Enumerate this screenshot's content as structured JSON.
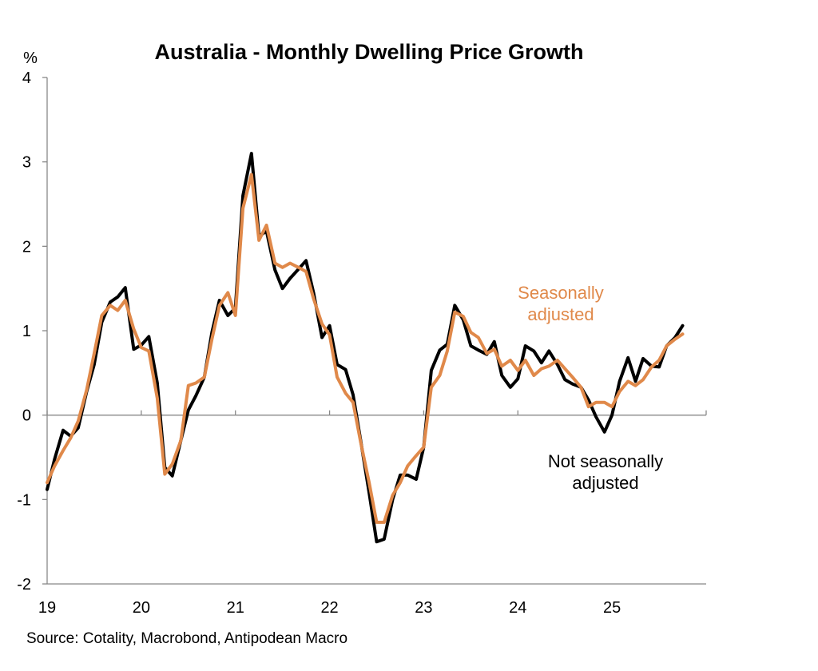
{
  "chart_data": {
    "type": "line",
    "title": "Australia - Monthly Dwelling Price Growth",
    "ylabel": "%",
    "xlabel": "",
    "ylim": [
      -2,
      4
    ],
    "yticks": [
      -2,
      -1,
      0,
      1,
      2,
      3,
      4
    ],
    "xlim": [
      2019.0,
      2026.0
    ],
    "xticks": [
      {
        "label": "19",
        "x": 2019
      },
      {
        "label": "20",
        "x": 2020
      },
      {
        "label": "21",
        "x": 2021
      },
      {
        "label": "22",
        "x": 2022
      },
      {
        "label": "23",
        "x": 2023
      },
      {
        "label": "24",
        "x": 2024
      },
      {
        "label": "25",
        "x": 2025
      }
    ],
    "zero_line": true,
    "grid": false,
    "series": [
      {
        "name": "Not seasonally adjusted",
        "color": "#000000",
        "points": [
          [
            2019.0,
            -0.88
          ],
          [
            2019.08,
            -0.52
          ],
          [
            2019.17,
            -0.18
          ],
          [
            2019.25,
            -0.25
          ],
          [
            2019.33,
            -0.15
          ],
          [
            2019.42,
            0.28
          ],
          [
            2019.5,
            0.6
          ],
          [
            2019.58,
            1.1
          ],
          [
            2019.67,
            1.34
          ],
          [
            2019.75,
            1.4
          ],
          [
            2019.83,
            1.51
          ],
          [
            2019.92,
            0.78
          ],
          [
            2020.0,
            0.83
          ],
          [
            2020.08,
            0.93
          ],
          [
            2020.17,
            0.38
          ],
          [
            2020.25,
            -0.62
          ],
          [
            2020.33,
            -0.72
          ],
          [
            2020.42,
            -0.3
          ],
          [
            2020.5,
            0.06
          ],
          [
            2020.58,
            0.23
          ],
          [
            2020.67,
            0.45
          ],
          [
            2020.75,
            0.98
          ],
          [
            2020.83,
            1.36
          ],
          [
            2020.92,
            1.18
          ],
          [
            2021.0,
            1.27
          ],
          [
            2021.08,
            2.6
          ],
          [
            2021.17,
            3.1
          ],
          [
            2021.25,
            2.12
          ],
          [
            2021.33,
            2.18
          ],
          [
            2021.42,
            1.72
          ],
          [
            2021.5,
            1.5
          ],
          [
            2021.58,
            1.62
          ],
          [
            2021.67,
            1.73
          ],
          [
            2021.75,
            1.83
          ],
          [
            2021.83,
            1.45
          ],
          [
            2021.92,
            0.92
          ],
          [
            2022.0,
            1.06
          ],
          [
            2022.08,
            0.6
          ],
          [
            2022.17,
            0.54
          ],
          [
            2022.25,
            0.24
          ],
          [
            2022.33,
            -0.3
          ],
          [
            2022.42,
            -0.92
          ],
          [
            2022.5,
            -1.5
          ],
          [
            2022.58,
            -1.47
          ],
          [
            2022.67,
            -1.0
          ],
          [
            2022.75,
            -0.71
          ],
          [
            2022.83,
            -0.71
          ],
          [
            2022.92,
            -0.76
          ],
          [
            2023.0,
            -0.38
          ],
          [
            2023.08,
            0.53
          ],
          [
            2023.17,
            0.77
          ],
          [
            2023.25,
            0.84
          ],
          [
            2023.33,
            1.3
          ],
          [
            2023.42,
            1.13
          ],
          [
            2023.5,
            0.82
          ],
          [
            2023.58,
            0.77
          ],
          [
            2023.67,
            0.72
          ],
          [
            2023.75,
            0.87
          ],
          [
            2023.83,
            0.47
          ],
          [
            2023.92,
            0.33
          ],
          [
            2024.0,
            0.43
          ],
          [
            2024.08,
            0.82
          ],
          [
            2024.17,
            0.76
          ],
          [
            2024.25,
            0.62
          ],
          [
            2024.33,
            0.76
          ],
          [
            2024.42,
            0.6
          ],
          [
            2024.5,
            0.42
          ],
          [
            2024.58,
            0.37
          ],
          [
            2024.67,
            0.33
          ],
          [
            2024.75,
            0.18
          ],
          [
            2024.83,
            -0.02
          ],
          [
            2024.92,
            -0.2
          ],
          [
            2025.0,
            0.0
          ],
          [
            2025.08,
            0.4
          ],
          [
            2025.17,
            0.68
          ],
          [
            2025.25,
            0.4
          ],
          [
            2025.33,
            0.67
          ],
          [
            2025.42,
            0.58
          ],
          [
            2025.5,
            0.57
          ],
          [
            2025.58,
            0.82
          ],
          [
            2025.67,
            0.92
          ],
          [
            2025.75,
            1.06
          ]
        ]
      },
      {
        "name": "Seasonally adjusted",
        "color": "#E0894A",
        "points": [
          [
            2019.0,
            -0.8
          ],
          [
            2019.08,
            -0.6
          ],
          [
            2019.17,
            -0.42
          ],
          [
            2019.25,
            -0.27
          ],
          [
            2019.33,
            -0.07
          ],
          [
            2019.42,
            0.3
          ],
          [
            2019.5,
            0.73
          ],
          [
            2019.58,
            1.18
          ],
          [
            2019.67,
            1.3
          ],
          [
            2019.75,
            1.24
          ],
          [
            2019.83,
            1.36
          ],
          [
            2019.92,
            1.02
          ],
          [
            2020.0,
            0.8
          ],
          [
            2020.08,
            0.76
          ],
          [
            2020.17,
            0.2
          ],
          [
            2020.25,
            -0.7
          ],
          [
            2020.33,
            -0.58
          ],
          [
            2020.42,
            -0.3
          ],
          [
            2020.5,
            0.35
          ],
          [
            2020.58,
            0.38
          ],
          [
            2020.67,
            0.45
          ],
          [
            2020.75,
            0.9
          ],
          [
            2020.83,
            1.3
          ],
          [
            2020.92,
            1.45
          ],
          [
            2021.0,
            1.18
          ],
          [
            2021.08,
            2.45
          ],
          [
            2021.17,
            2.85
          ],
          [
            2021.25,
            2.07
          ],
          [
            2021.33,
            2.25
          ],
          [
            2021.42,
            1.8
          ],
          [
            2021.5,
            1.75
          ],
          [
            2021.58,
            1.8
          ],
          [
            2021.67,
            1.75
          ],
          [
            2021.75,
            1.7
          ],
          [
            2021.83,
            1.38
          ],
          [
            2021.92,
            1.08
          ],
          [
            2022.0,
            0.95
          ],
          [
            2022.08,
            0.45
          ],
          [
            2022.17,
            0.26
          ],
          [
            2022.25,
            0.15
          ],
          [
            2022.33,
            -0.32
          ],
          [
            2022.42,
            -0.8
          ],
          [
            2022.5,
            -1.27
          ],
          [
            2022.58,
            -1.27
          ],
          [
            2022.67,
            -0.95
          ],
          [
            2022.75,
            -0.8
          ],
          [
            2022.83,
            -0.6
          ],
          [
            2022.92,
            -0.48
          ],
          [
            2023.0,
            -0.38
          ],
          [
            2023.08,
            0.33
          ],
          [
            2023.17,
            0.47
          ],
          [
            2023.25,
            0.76
          ],
          [
            2023.33,
            1.22
          ],
          [
            2023.42,
            1.17
          ],
          [
            2023.5,
            0.98
          ],
          [
            2023.58,
            0.92
          ],
          [
            2023.67,
            0.73
          ],
          [
            2023.75,
            0.78
          ],
          [
            2023.83,
            0.58
          ],
          [
            2023.92,
            0.65
          ],
          [
            2024.0,
            0.53
          ],
          [
            2024.08,
            0.65
          ],
          [
            2024.17,
            0.47
          ],
          [
            2024.25,
            0.55
          ],
          [
            2024.33,
            0.58
          ],
          [
            2024.42,
            0.65
          ],
          [
            2024.5,
            0.55
          ],
          [
            2024.58,
            0.45
          ],
          [
            2024.67,
            0.33
          ],
          [
            2024.75,
            0.1
          ],
          [
            2024.83,
            0.15
          ],
          [
            2024.92,
            0.15
          ],
          [
            2025.0,
            0.1
          ],
          [
            2025.08,
            0.28
          ],
          [
            2025.17,
            0.4
          ],
          [
            2025.25,
            0.35
          ],
          [
            2025.33,
            0.42
          ],
          [
            2025.42,
            0.57
          ],
          [
            2025.5,
            0.65
          ],
          [
            2025.58,
            0.82
          ],
          [
            2025.67,
            0.9
          ],
          [
            2025.75,
            0.96
          ]
        ]
      }
    ],
    "annotations": [
      {
        "name": "annotation-seasonally-adjusted",
        "lines": [
          "Seasonally",
          "adjusted"
        ],
        "color": "#E0894A"
      },
      {
        "name": "annotation-not-seasonally-adjusted",
        "lines": [
          "Not seasonally",
          "adjusted"
        ],
        "color": "#000000"
      }
    ],
    "source": "Source: Cotality, Macrobond, Antipodean Macro"
  }
}
